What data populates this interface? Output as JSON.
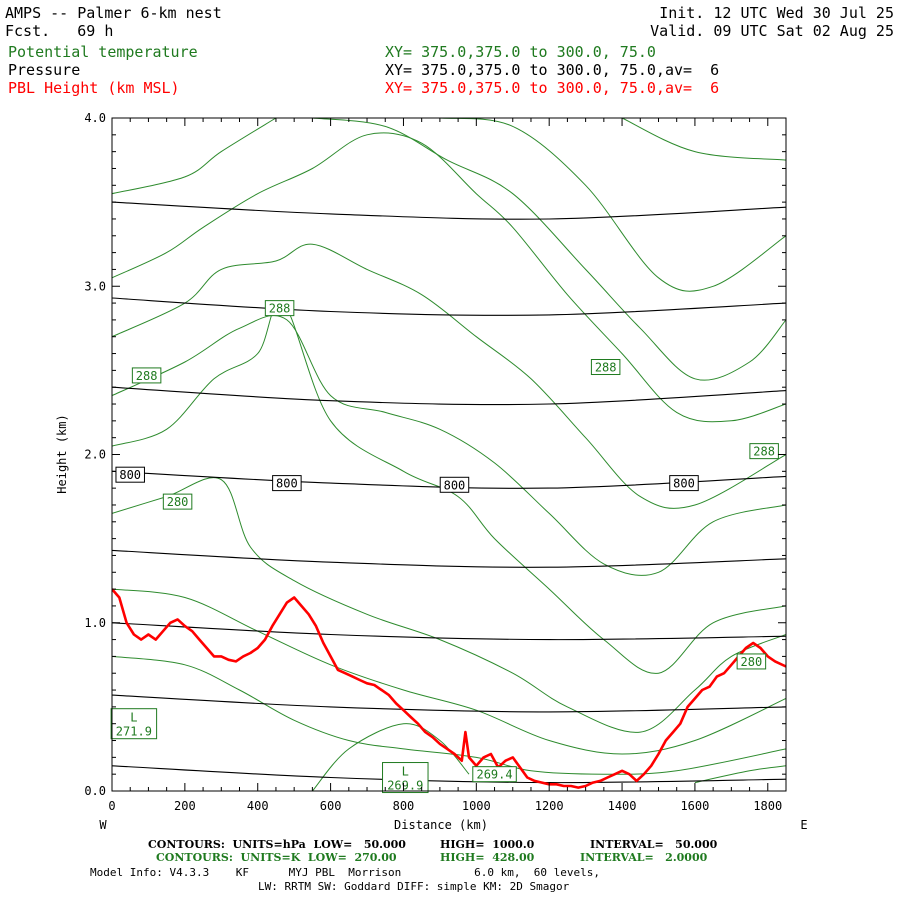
{
  "header": {
    "line1_left": "AMPS -- Palmer 6-km nest",
    "line2_left": "Fcst.   69 h",
    "line1_right": "Init. 12 UTC Wed 30 Jul 25",
    "line2_right": "Valid. 09 UTC Sat 02 Aug 25",
    "fields": [
      {
        "name": "Potential temperature",
        "xy": "XY= 375.0,375.0 to 300.0, 75.0",
        "color": "#1f7a1f"
      },
      {
        "name": "Pressure",
        "xy": "XY= 375.0,375.0 to 300.0, 75.0,av=  6",
        "color": "#000000"
      },
      {
        "name": "PBL Height (km MSL)",
        "xy": "XY= 375.0,375.0 to 300.0, 75.0,av=  6",
        "color": "#ff0000"
      }
    ]
  },
  "chart_data": {
    "type": "line",
    "xlabel": "Distance (km)",
    "ylabel": "Height (km)",
    "xlim": [
      0,
      1850
    ],
    "ylim": [
      0.0,
      4.0
    ],
    "xticks": [
      "0",
      "200",
      "400",
      "600",
      "800",
      "1000",
      "1200",
      "1400",
      "1600",
      "1800"
    ],
    "yticks": [
      "0.0",
      "1.0",
      "2.0",
      "3.0",
      "4.0"
    ],
    "x_end_labels": {
      "left": "W",
      "right": "E"
    },
    "pressure_contours_hPa": [
      {
        "label": "",
        "points": [
          [
            0,
            0.15
          ],
          [
            600,
            0.08
          ],
          [
            1200,
            0.05
          ],
          [
            1850,
            0.07
          ]
        ]
      },
      {
        "label": "",
        "points": [
          [
            0,
            0.57
          ],
          [
            600,
            0.5
          ],
          [
            1200,
            0.47
          ],
          [
            1850,
            0.5
          ]
        ]
      },
      {
        "label": "",
        "points": [
          [
            0,
            1.0
          ],
          [
            600,
            0.93
          ],
          [
            1200,
            0.9
          ],
          [
            1850,
            0.92
          ]
        ]
      },
      {
        "label": "",
        "points": [
          [
            0,
            1.43
          ],
          [
            600,
            1.36
          ],
          [
            1200,
            1.33
          ],
          [
            1850,
            1.38
          ]
        ]
      },
      {
        "label": "800",
        "points": [
          [
            0,
            1.9
          ],
          [
            600,
            1.83
          ],
          [
            1200,
            1.8
          ],
          [
            1850,
            1.87
          ]
        ]
      },
      {
        "label": "",
        "points": [
          [
            0,
            2.4
          ],
          [
            600,
            2.32
          ],
          [
            1200,
            2.3
          ],
          [
            1850,
            2.38
          ]
        ]
      },
      {
        "label": "",
        "points": [
          [
            0,
            2.93
          ],
          [
            600,
            2.85
          ],
          [
            1200,
            2.83
          ],
          [
            1850,
            2.9
          ]
        ]
      },
      {
        "label": "",
        "points": [
          [
            0,
            3.5
          ],
          [
            600,
            3.43
          ],
          [
            1200,
            3.4
          ],
          [
            1850,
            3.47
          ]
        ]
      }
    ],
    "pressure_labels": [
      {
        "text": "800",
        "x": 50,
        "y": 1.88
      },
      {
        "text": "800",
        "x": 480,
        "y": 1.83
      },
      {
        "text": "800",
        "x": 940,
        "y": 1.82
      },
      {
        "text": "800",
        "x": 1570,
        "y": 1.83
      }
    ],
    "theta_contours_K": [
      {
        "points": [
          [
            0,
            1.65
          ],
          [
            150,
            1.75
          ],
          [
            300,
            1.85
          ],
          [
            380,
            1.45
          ],
          [
            500,
            1.25
          ],
          [
            700,
            1.05
          ],
          [
            900,
            0.9
          ],
          [
            1100,
            0.7
          ],
          [
            1250,
            0.5
          ],
          [
            1450,
            0.35
          ],
          [
            1600,
            0.6
          ],
          [
            1700,
            0.8
          ],
          [
            1850,
            0.93
          ]
        ]
      },
      {
        "points": [
          [
            0,
            2.05
          ],
          [
            150,
            2.15
          ],
          [
            280,
            2.45
          ],
          [
            400,
            2.6
          ],
          [
            470,
            2.9
          ],
          [
            600,
            2.2
          ],
          [
            800,
            1.9
          ],
          [
            950,
            1.75
          ],
          [
            1050,
            1.5
          ],
          [
            1200,
            1.2
          ],
          [
            1350,
            0.9
          ],
          [
            1500,
            0.7
          ],
          [
            1650,
            1.0
          ],
          [
            1850,
            1.1
          ]
        ]
      },
      {
        "points": [
          [
            0,
            2.35
          ],
          [
            200,
            2.55
          ],
          [
            350,
            2.75
          ],
          [
            480,
            2.8
          ],
          [
            600,
            2.35
          ],
          [
            750,
            2.25
          ],
          [
            900,
            2.15
          ],
          [
            1050,
            1.95
          ],
          [
            1200,
            1.65
          ],
          [
            1350,
            1.35
          ],
          [
            1500,
            1.3
          ],
          [
            1650,
            1.6
          ],
          [
            1850,
            1.7
          ]
        ]
      },
      {
        "points": [
          [
            0,
            2.7
          ],
          [
            200,
            2.9
          ],
          [
            300,
            3.1
          ],
          [
            450,
            3.15
          ],
          [
            550,
            3.25
          ],
          [
            700,
            3.1
          ],
          [
            850,
            2.95
          ],
          [
            1000,
            2.7
          ],
          [
            1150,
            2.45
          ],
          [
            1300,
            2.1
          ],
          [
            1450,
            1.75
          ],
          [
            1600,
            1.7
          ],
          [
            1850,
            2.0
          ]
        ]
      },
      {
        "points": [
          [
            0,
            3.05
          ],
          [
            150,
            3.2
          ],
          [
            250,
            3.35
          ],
          [
            400,
            3.55
          ],
          [
            550,
            3.7
          ],
          [
            700,
            3.9
          ],
          [
            850,
            3.85
          ],
          [
            1000,
            3.55
          ],
          [
            1100,
            3.35
          ],
          [
            1250,
            2.95
          ],
          [
            1400,
            2.6
          ],
          [
            1550,
            2.25
          ],
          [
            1700,
            2.2
          ],
          [
            1850,
            2.3
          ]
        ]
      },
      {
        "points": [
          [
            0,
            3.55
          ],
          [
            200,
            3.65
          ],
          [
            300,
            3.8
          ],
          [
            450,
            4.0
          ]
        ]
      },
      {
        "points": [
          [
            550,
            4.0
          ],
          [
            750,
            3.95
          ],
          [
            920,
            3.75
          ],
          [
            1100,
            3.55
          ],
          [
            1300,
            3.1
          ],
          [
            1450,
            2.75
          ],
          [
            1600,
            2.45
          ],
          [
            1750,
            2.55
          ],
          [
            1850,
            2.8
          ]
        ]
      },
      {
        "points": [
          [
            900,
            4.0
          ],
          [
            1100,
            3.95
          ],
          [
            1300,
            3.6
          ],
          [
            1500,
            3.05
          ],
          [
            1650,
            3.0
          ],
          [
            1850,
            3.3
          ]
        ]
      },
      {
        "points": [
          [
            1400,
            4.0
          ],
          [
            1600,
            3.8
          ],
          [
            1850,
            3.75
          ]
        ]
      },
      {
        "points": [
          [
            0,
            1.2
          ],
          [
            200,
            1.15
          ],
          [
            400,
            0.95
          ],
          [
            600,
            0.75
          ],
          [
            800,
            0.6
          ],
          [
            1000,
            0.48
          ],
          [
            1200,
            0.3
          ],
          [
            1400,
            0.22
          ],
          [
            1600,
            0.3
          ],
          [
            1850,
            0.55
          ]
        ]
      },
      {
        "points": [
          [
            0,
            0.8
          ],
          [
            200,
            0.75
          ],
          [
            350,
            0.6
          ],
          [
            500,
            0.42
          ],
          [
            650,
            0.3
          ],
          [
            800,
            0.25
          ],
          [
            1000,
            0.2
          ],
          [
            1150,
            0.12
          ],
          [
            1350,
            0.1
          ],
          [
            1550,
            0.12
          ],
          [
            1850,
            0.25
          ]
        ]
      },
      {
        "points": [
          [
            550,
            0.0
          ],
          [
            650,
            0.25
          ],
          [
            800,
            0.4
          ],
          [
            900,
            0.3
          ],
          [
            980,
            0.1
          ]
        ]
      },
      {
        "points": [
          [
            1600,
            0.05
          ],
          [
            1750,
            0.12
          ],
          [
            1850,
            0.15
          ]
        ]
      }
    ],
    "theta_labels": [
      {
        "text": "288",
        "x": 460,
        "y": 2.87
      },
      {
        "text": "288",
        "x": 95,
        "y": 2.47
      },
      {
        "text": "288",
        "x": 1355,
        "y": 2.52
      },
      {
        "text": "288",
        "x": 1790,
        "y": 2.02
      },
      {
        "text": "280",
        "x": 180,
        "y": 1.72
      },
      {
        "text": "280",
        "x": 1755,
        "y": 0.77
      },
      {
        "text": "269.4",
        "x": 1050,
        "y": 0.1
      }
    ],
    "low_labels": [
      {
        "text": "L",
        "value": "271.9",
        "x": 60,
        "y": 0.4
      },
      {
        "text": "L",
        "value": "269.9",
        "x": 805,
        "y": 0.08
      }
    ],
    "series": [
      {
        "name": "PBL Height (km MSL)",
        "color": "#ff0000",
        "x": [
          0,
          20,
          40,
          60,
          80,
          100,
          120,
          140,
          160,
          180,
          200,
          220,
          240,
          260,
          280,
          300,
          320,
          340,
          360,
          380,
          400,
          420,
          440,
          460,
          480,
          500,
          520,
          540,
          560,
          580,
          600,
          620,
          640,
          660,
          680,
          700,
          720,
          740,
          760,
          780,
          800,
          820,
          840,
          860,
          880,
          900,
          920,
          940,
          960,
          970,
          980,
          1000,
          1020,
          1040,
          1060,
          1080,
          1100,
          1120,
          1140,
          1160,
          1180,
          1200,
          1220,
          1240,
          1260,
          1280,
          1300,
          1320,
          1340,
          1360,
          1380,
          1400,
          1420,
          1440,
          1460,
          1480,
          1500,
          1520,
          1540,
          1560,
          1580,
          1600,
          1620,
          1640,
          1660,
          1680,
          1700,
          1720,
          1740,
          1760,
          1780,
          1800,
          1820,
          1850
        ],
        "y": [
          1.2,
          1.15,
          1.0,
          0.93,
          0.9,
          0.93,
          0.9,
          0.95,
          1.0,
          1.02,
          0.98,
          0.95,
          0.9,
          0.85,
          0.8,
          0.8,
          0.78,
          0.77,
          0.8,
          0.82,
          0.85,
          0.9,
          0.98,
          1.05,
          1.12,
          1.15,
          1.1,
          1.05,
          0.98,
          0.88,
          0.8,
          0.72,
          0.7,
          0.68,
          0.66,
          0.64,
          0.63,
          0.6,
          0.57,
          0.52,
          0.48,
          0.44,
          0.4,
          0.35,
          0.32,
          0.28,
          0.25,
          0.22,
          0.18,
          0.35,
          0.2,
          0.15,
          0.2,
          0.22,
          0.14,
          0.18,
          0.2,
          0.14,
          0.08,
          0.06,
          0.05,
          0.04,
          0.04,
          0.03,
          0.03,
          0.02,
          0.03,
          0.05,
          0.06,
          0.08,
          0.1,
          0.12,
          0.1,
          0.06,
          0.1,
          0.15,
          0.22,
          0.3,
          0.35,
          0.4,
          0.5,
          0.55,
          0.6,
          0.62,
          0.68,
          0.7,
          0.75,
          0.8,
          0.85,
          0.88,
          0.85,
          0.8,
          0.77,
          0.74
        ]
      }
    ]
  },
  "footer": {
    "line1_a": "CONTOURS:  UNITS=hPa  LOW=   50.000",
    "line1_b": "HIGH=  1000.0",
    "line1_c": "INTERVAL=   50.000",
    "line2_a": "CONTOURS:  UNITS=K  LOW=  270.00",
    "line2_b": "HIGH=  428.00",
    "line2_c": "INTERVAL=   2.0000",
    "line3": "Model Info: V4.3.3    KF      MYJ PBL  Morrison           6.0 km,  60 levels,",
    "line4": "LW: RRTM SW: Goddard DIFF: simple KM: 2D Smagor"
  }
}
